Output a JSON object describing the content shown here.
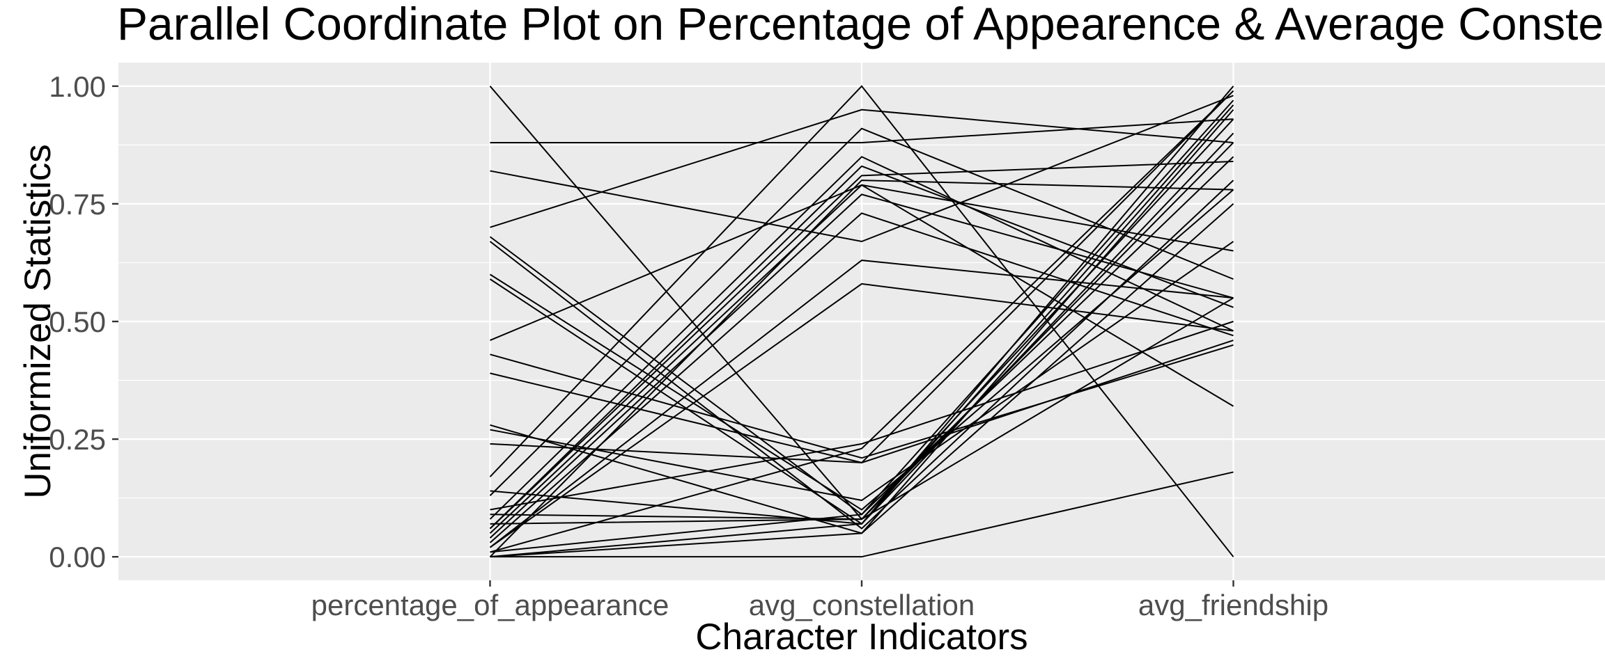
{
  "chart_data": {
    "type": "line",
    "subtype": "parallel-coordinates",
    "title": "Parallel Coordinate Plot on Percentage of Appearence & Average Constellation",
    "xlabel": "Character Indicators",
    "ylabel": "Uniformized Statistics",
    "categories": [
      "percentage_of_appearance",
      "avg_constellation",
      "avg_friendship"
    ],
    "ylim": [
      -0.05,
      1.05
    ],
    "y_ticks": [
      "0.00",
      "0.25",
      "0.50",
      "0.75",
      "1.00"
    ],
    "y_tick_values": [
      0,
      0.25,
      0.5,
      0.75,
      1.0
    ],
    "grid": true,
    "legend": "none",
    "line_color": "#000000",
    "panel_color": "#ebebeb",
    "series": [
      {
        "values": [
          1.0,
          0.08,
          0.55
        ]
      },
      {
        "values": [
          0.88,
          0.88,
          0.93
        ]
      },
      {
        "values": [
          0.82,
          0.67,
          0.98
        ]
      },
      {
        "values": [
          0.7,
          0.95,
          0.88
        ]
      },
      {
        "values": [
          0.68,
          0.09,
          0.85
        ]
      },
      {
        "values": [
          0.67,
          0.06,
          0.8
        ]
      },
      {
        "values": [
          0.6,
          0.1,
          0.78
        ]
      },
      {
        "values": [
          0.59,
          0.07,
          0.9
        ]
      },
      {
        "values": [
          0.46,
          0.79,
          0.32
        ]
      },
      {
        "values": [
          0.43,
          0.21,
          0.45
        ]
      },
      {
        "values": [
          0.39,
          0.2,
          0.46
        ]
      },
      {
        "values": [
          0.28,
          0.05,
          0.95
        ]
      },
      {
        "values": [
          0.27,
          0.12,
          0.67
        ]
      },
      {
        "values": [
          0.24,
          0.2,
          0.99
        ]
      },
      {
        "values": [
          0.17,
          1.0,
          0.0
        ]
      },
      {
        "values": [
          0.14,
          0.07,
          0.96
        ]
      },
      {
        "values": [
          0.13,
          0.91,
          0.59
        ]
      },
      {
        "values": [
          0.1,
          0.24,
          0.5
        ]
      },
      {
        "values": [
          0.09,
          0.08,
          0.93
        ]
      },
      {
        "values": [
          0.08,
          0.85,
          0.48
        ]
      },
      {
        "values": [
          0.07,
          0.08,
          0.88
        ]
      },
      {
        "values": [
          0.06,
          0.81,
          0.84
        ]
      },
      {
        "values": [
          0.06,
          0.83,
          0.53
        ]
      },
      {
        "values": [
          0.05,
          0.79,
          0.65
        ]
      },
      {
        "values": [
          0.04,
          0.77,
          0.55
        ]
      },
      {
        "values": [
          0.03,
          0.73,
          0.47
        ]
      },
      {
        "values": [
          0.02,
          0.63,
          0.55
        ]
      },
      {
        "values": [
          0.02,
          0.58,
          0.48
        ]
      },
      {
        "values": [
          0.01,
          0.23,
          0.99
        ]
      },
      {
        "values": [
          0.01,
          0.09,
          0.97
        ]
      },
      {
        "values": [
          0.0,
          0.07,
          1.0
        ]
      },
      {
        "values": [
          0.0,
          0.05,
          0.75
        ]
      },
      {
        "values": [
          0.0,
          0.0,
          0.18
        ]
      },
      {
        "values": [
          0.0,
          0.8,
          0.78
        ]
      }
    ]
  }
}
